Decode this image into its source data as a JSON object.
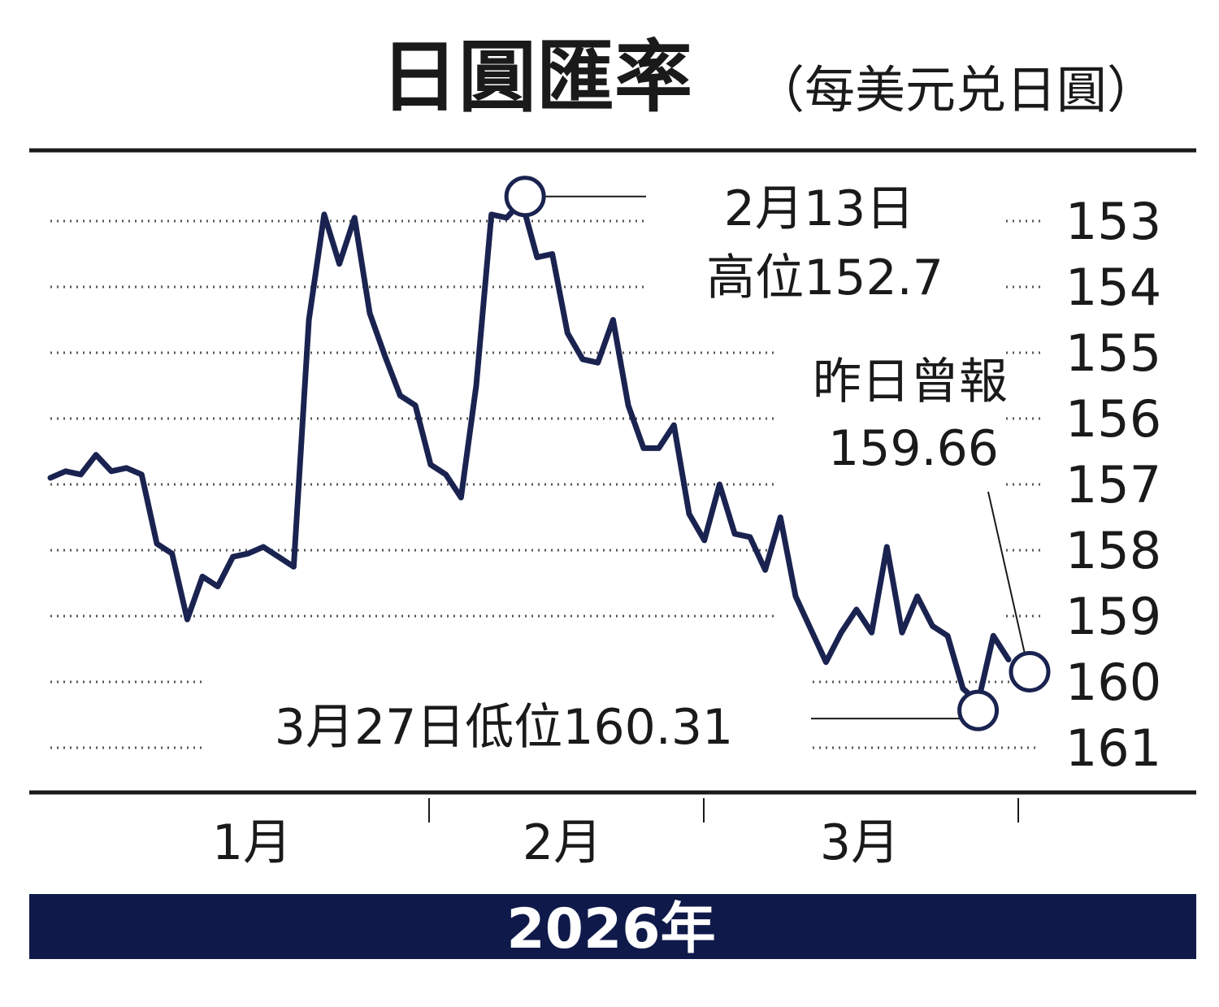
{
  "chart_data": {
    "type": "line",
    "title": "日圓匯率",
    "subtitle": "（每美元兑日圓）",
    "year_label": "2026年",
    "y_axis": {
      "inverted": true,
      "ylim": [
        152.8,
        161.1
      ],
      "ticks": [
        "153",
        "154",
        "155",
        "156",
        "157",
        "158",
        "159",
        "160",
        "161"
      ],
      "position": "right",
      "grid": "dotted"
    },
    "x_axis": {
      "month_labels": [
        "1月",
        "2月",
        "3月"
      ]
    },
    "series": [
      {
        "color": "#1a2350",
        "values": [
          156.9,
          156.8,
          156.85,
          156.55,
          156.8,
          156.75,
          156.85,
          157.9,
          158.05,
          159.05,
          158.4,
          158.55,
          158.1,
          158.05,
          157.95,
          158.1,
          158.25,
          154.5,
          152.9,
          153.65,
          152.95,
          154.4,
          155.05,
          155.65,
          155.8,
          156.7,
          156.85,
          157.2,
          155.5,
          152.9,
          152.95,
          152.7,
          153.55,
          153.5,
          154.7,
          155.1,
          155.15,
          154.5,
          155.8,
          156.45,
          156.45,
          156.1,
          157.45,
          157.85,
          157.0,
          157.75,
          157.8,
          158.3,
          157.5,
          158.7,
          159.2,
          159.7,
          159.25,
          158.9,
          159.25,
          157.95,
          159.25,
          158.7,
          159.15,
          159.3,
          160.1,
          160.31,
          159.3,
          159.66
        ]
      }
    ],
    "annotations": [
      {
        "date": "2月13日",
        "text": "2月13日",
        "text2": "高位152.7",
        "value": 152.7
      },
      {
        "text": "昨日曾報",
        "text2": "159.66",
        "value": 159.66
      },
      {
        "text": "3月27日低位160.31",
        "value": 160.31
      }
    ]
  }
}
